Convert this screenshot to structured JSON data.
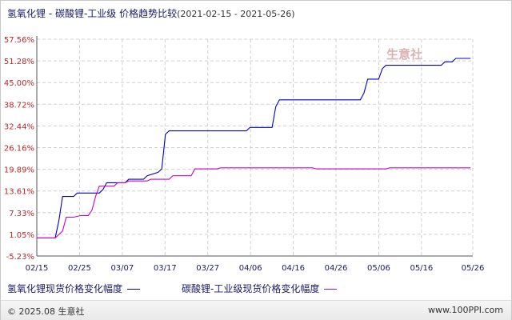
{
  "title": {
    "main": "氢氧化锂 - 碳酸锂-工业级 价格趋势比较",
    "range": "(2021-02-15 - 2021-05-26)"
  },
  "watermark": {
    "text": "生意社",
    "url": "www.100ppi.com"
  },
  "legend": [
    {
      "label": "氢氧化锂现货价格变化幅度",
      "color": "#0000cc"
    },
    {
      "label": "碳酸锂-工业级现货价格变化幅度",
      "color": "#cc00cc"
    }
  ],
  "footer": {
    "copyright": "© 2025.08 生意社",
    "site": "www.100PPI.com"
  },
  "chart_data": {
    "type": "line",
    "x_ticks": [
      "02/15",
      "02/25",
      "03/07",
      "03/17",
      "03/27",
      "04/06",
      "04/16",
      "04/26",
      "05/06",
      "05/16",
      "05/26"
    ],
    "y_ticks": [
      "57.56%",
      "51.28%",
      "45.00%",
      "38.72%",
      "32.44%",
      "26.16%",
      "19.89%",
      "13.61%",
      "7.33%",
      "1.05%",
      "-5.23%"
    ],
    "ylim": [
      -5.23,
      57.56
    ],
    "x_start": "02/15",
    "x_days": 100,
    "grid": true,
    "series": [
      {
        "name": "氢氧化锂现货价格变化幅度",
        "color": "#0000cc",
        "points": [
          [
            0,
            0
          ],
          [
            3,
            0
          ],
          [
            4,
            0
          ],
          [
            5,
            0
          ],
          [
            6,
            5
          ],
          [
            7,
            12
          ],
          [
            10,
            12
          ],
          [
            11,
            13
          ],
          [
            17,
            13
          ],
          [
            18,
            14
          ],
          [
            19,
            16
          ],
          [
            24,
            16
          ],
          [
            25,
            17
          ],
          [
            26,
            17
          ],
          [
            29,
            17
          ],
          [
            30,
            18
          ],
          [
            33,
            19
          ],
          [
            34,
            20
          ],
          [
            35,
            30
          ],
          [
            36,
            31
          ],
          [
            57,
            31
          ],
          [
            58,
            32
          ],
          [
            64,
            32
          ],
          [
            65,
            38
          ],
          [
            66,
            40
          ],
          [
            88,
            40
          ],
          [
            89,
            42
          ],
          [
            90,
            46
          ],
          [
            93,
            46
          ],
          [
            94,
            49
          ],
          [
            95,
            50
          ],
          [
            96,
            50
          ],
          [
            104,
            50
          ],
          [
            105,
            50
          ],
          [
            110,
            50
          ],
          [
            111,
            51
          ],
          [
            113,
            51
          ],
          [
            114,
            52
          ],
          [
            118,
            52
          ]
        ]
      },
      {
        "name": "碳酸锂-工业级现货价格变化幅度",
        "color": "#cc00cc",
        "points": [
          [
            0,
            0
          ],
          [
            3,
            0
          ],
          [
            4,
            0
          ],
          [
            5,
            0
          ],
          [
            6,
            1
          ],
          [
            7,
            2
          ],
          [
            8,
            6
          ],
          [
            10,
            6
          ],
          [
            12,
            6.5
          ],
          [
            14,
            6.5
          ],
          [
            15,
            8
          ],
          [
            16,
            12
          ],
          [
            17,
            15
          ],
          [
            21,
            15
          ],
          [
            22,
            16
          ],
          [
            24,
            16
          ],
          [
            25,
            16.5
          ],
          [
            30,
            16.5
          ],
          [
            31,
            17
          ],
          [
            36,
            17
          ],
          [
            37,
            18
          ],
          [
            42,
            18
          ],
          [
            43,
            20
          ],
          [
            49,
            20
          ],
          [
            50,
            20.3
          ],
          [
            58,
            20.3
          ],
          [
            75,
            20.3
          ],
          [
            76,
            20
          ],
          [
            88,
            20
          ],
          [
            95,
            20
          ],
          [
            96,
            20.3
          ],
          [
            118,
            20.3
          ]
        ]
      }
    ]
  }
}
